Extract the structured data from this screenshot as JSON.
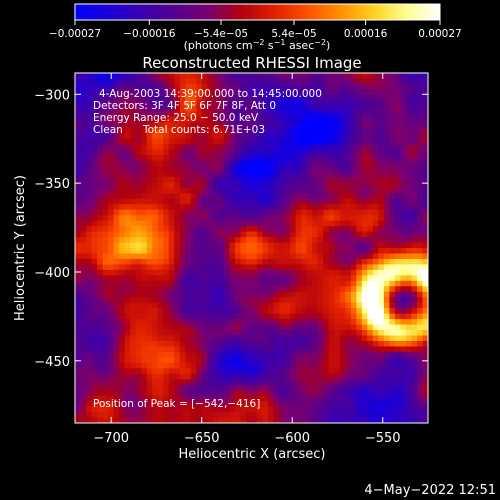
{
  "chart_data": {
    "type": "heatmap",
    "title": "Reconstructed RHESSI Image",
    "xlabel": "Heliocentric X (arcsec)",
    "ylabel": "Heliocentric Y (arcsec)",
    "x_range": [
      -720,
      -525
    ],
    "y_range": [
      -485,
      -288
    ],
    "x_ticks": [
      -700,
      -650,
      -600,
      -550
    ],
    "x_tick_labels": [
      "−700",
      "−650",
      "−600",
      "−550"
    ],
    "y_ticks": [
      -450,
      -400,
      -350,
      -300
    ],
    "y_tick_labels": [
      "−450",
      "−400",
      "−350",
      "−300"
    ],
    "colorbar": {
      "min": -0.00027,
      "max": 0.00027,
      "tick_values": [
        -0.00027,
        -0.00016,
        -5.4e-05,
        5.4e-05,
        0.00016,
        0.00027
      ],
      "tick_labels": [
        "−0.00027",
        "−0.00016",
        "−5.4e−05",
        "5.4e−05",
        "0.00016",
        "0.00027"
      ],
      "unit_main": "(photons cm",
      "unit_exp1": "−2",
      "unit_mid": " s",
      "unit_exp2": "−1",
      "unit_mid2": " asec",
      "unit_exp3": "−2",
      "unit_end": ")",
      "colors": [
        "#0000ff",
        "#1a00d8",
        "#3a00b0",
        "#520090",
        "#7a0070",
        "#b00010",
        "#e02000",
        "#ff5000",
        "#ff9000",
        "#ffd020",
        "#ffff90",
        "#ffffff"
      ]
    },
    "annotations": {
      "time_range": "4-Aug-2003 14:39:00.000 to 14:45:00.000",
      "detectors": "Detectors: 3F 4F 5F 6F 7F 8F, Att 0",
      "energy_range": "Energy Range: 25.0 − 50.0 keV",
      "algorithm": "Clean",
      "total_counts": "Total counts: 6.71E+03",
      "peak_position": "Position of Peak = [−542,−416]"
    },
    "grid": false,
    "peak": [
      -542,
      -416
    ]
  },
  "footer": {
    "timestamp": "4−May−2022 12:51"
  }
}
